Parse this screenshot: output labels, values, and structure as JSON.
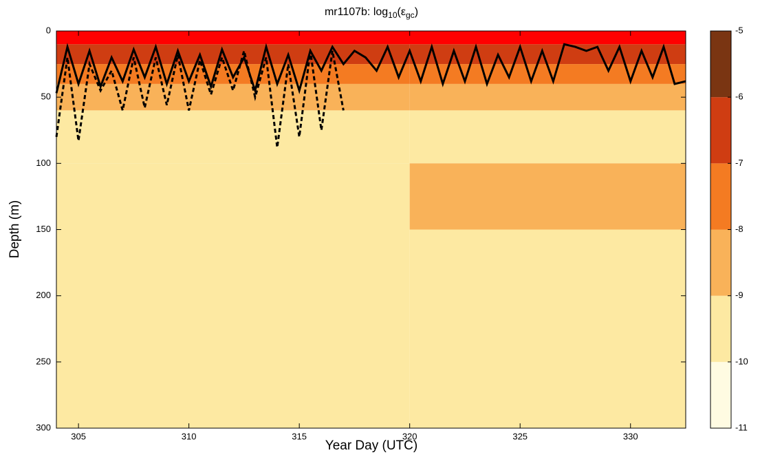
{
  "chart_data": {
    "type": "contourf",
    "title": [
      "mr1107b: log",
      "10",
      "(ε",
      "gc",
      ")"
    ],
    "xlabel": "Year Day (UTC)",
    "ylabel": "Depth (m)",
    "xlim": [
      304,
      332.5
    ],
    "ylim": [
      0,
      300
    ],
    "y_reversed": true,
    "xticks": [
      305,
      310,
      315,
      320,
      325,
      330
    ],
    "yticks": [
      0,
      50,
      100,
      150,
      200,
      250,
      300
    ],
    "surface_band": {
      "depth": [
        0,
        10
      ],
      "color": "#ff0000"
    },
    "field": {
      "x_edges": [
        304,
        320,
        332.5
      ],
      "depth_edges": [
        10,
        25,
        40,
        60,
        100,
        150,
        300
      ],
      "z": [
        [
          -6.5,
          -6.5
        ],
        [
          -7.5,
          -7.5
        ],
        [
          -8.5,
          -8.5
        ],
        [
          -9.5,
          -9.5
        ],
        [
          -9.5,
          -8.5
        ],
        [
          -9.5,
          -9.5
        ]
      ]
    },
    "colorbar": {
      "levels": [
        -11,
        -10,
        -9,
        -8,
        -7,
        -6,
        -5
      ],
      "colors": [
        "#fffbe2",
        "#fde9a2",
        "#f9b259",
        "#f47b22",
        "#cf3d12",
        "#7a3512"
      ]
    },
    "series": [
      {
        "color": "#000000",
        "dash": false,
        "x": [
          304,
          304.5,
          305,
          305.5,
          306,
          306.5,
          307,
          307.5,
          308,
          308.5,
          309,
          309.5,
          310,
          310.5,
          311,
          311.5,
          312,
          312.5,
          313,
          313.5,
          314,
          314.5,
          315,
          315.5,
          316,
          316.5,
          317,
          317.5,
          318,
          318.5,
          319,
          319.5,
          320,
          320.5,
          321,
          321.5,
          322,
          322.5,
          323,
          323.5,
          324,
          324.5,
          325,
          325.5,
          326,
          326.5,
          327,
          327.5,
          328,
          328.5,
          329,
          329.5,
          330,
          330.5,
          331,
          331.5,
          332,
          332.5
        ],
        "values": [
          47,
          12,
          40,
          15,
          42,
          20,
          38,
          14,
          35,
          12,
          40,
          15,
          38,
          18,
          42,
          14,
          35,
          20,
          45,
          12,
          40,
          18,
          45,
          15,
          30,
          12,
          25,
          15,
          20,
          30,
          12,
          35,
          15,
          38,
          12,
          40,
          15,
          38,
          12,
          40,
          18,
          35,
          12,
          38,
          15,
          38,
          10,
          12,
          15,
          12,
          30,
          12,
          38,
          15,
          35,
          12,
          40,
          38
        ]
      },
      {
        "color": "#000000",
        "dash": true,
        "x": [
          304,
          304.5,
          305,
          305.5,
          306,
          306.5,
          307,
          307.5,
          308,
          308.5,
          309,
          309.5,
          310,
          310.5,
          311,
          311.5,
          312,
          312.5,
          313,
          313.5,
          314,
          314.5,
          315,
          315.5,
          316,
          316.5,
          317
        ],
        "values": [
          80,
          20,
          83,
          25,
          45,
          30,
          60,
          20,
          58,
          20,
          56,
          18,
          60,
          22,
          48,
          20,
          45,
          15,
          50,
          20,
          88,
          25,
          80,
          15,
          75,
          15,
          60
        ]
      }
    ]
  }
}
